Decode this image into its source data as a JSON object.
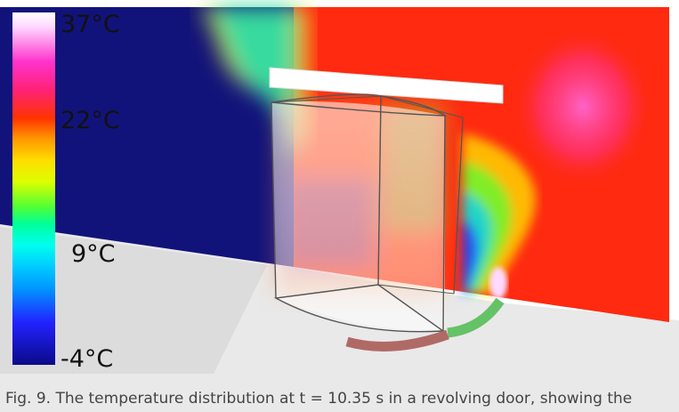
{
  "legend": {
    "labels": [
      "37°C",
      "22°C",
      "9°C",
      "-4°C"
    ]
  },
  "caption": "Fig. 9. The temperature distribution at t = 10.35 s in a revolving door, showing the",
  "colors": {
    "cold": "#12137a",
    "warm": "#ff2a10",
    "hot": "#ff66d0",
    "seal_open": "#66c266",
    "seal_closed": "#b06a66"
  }
}
